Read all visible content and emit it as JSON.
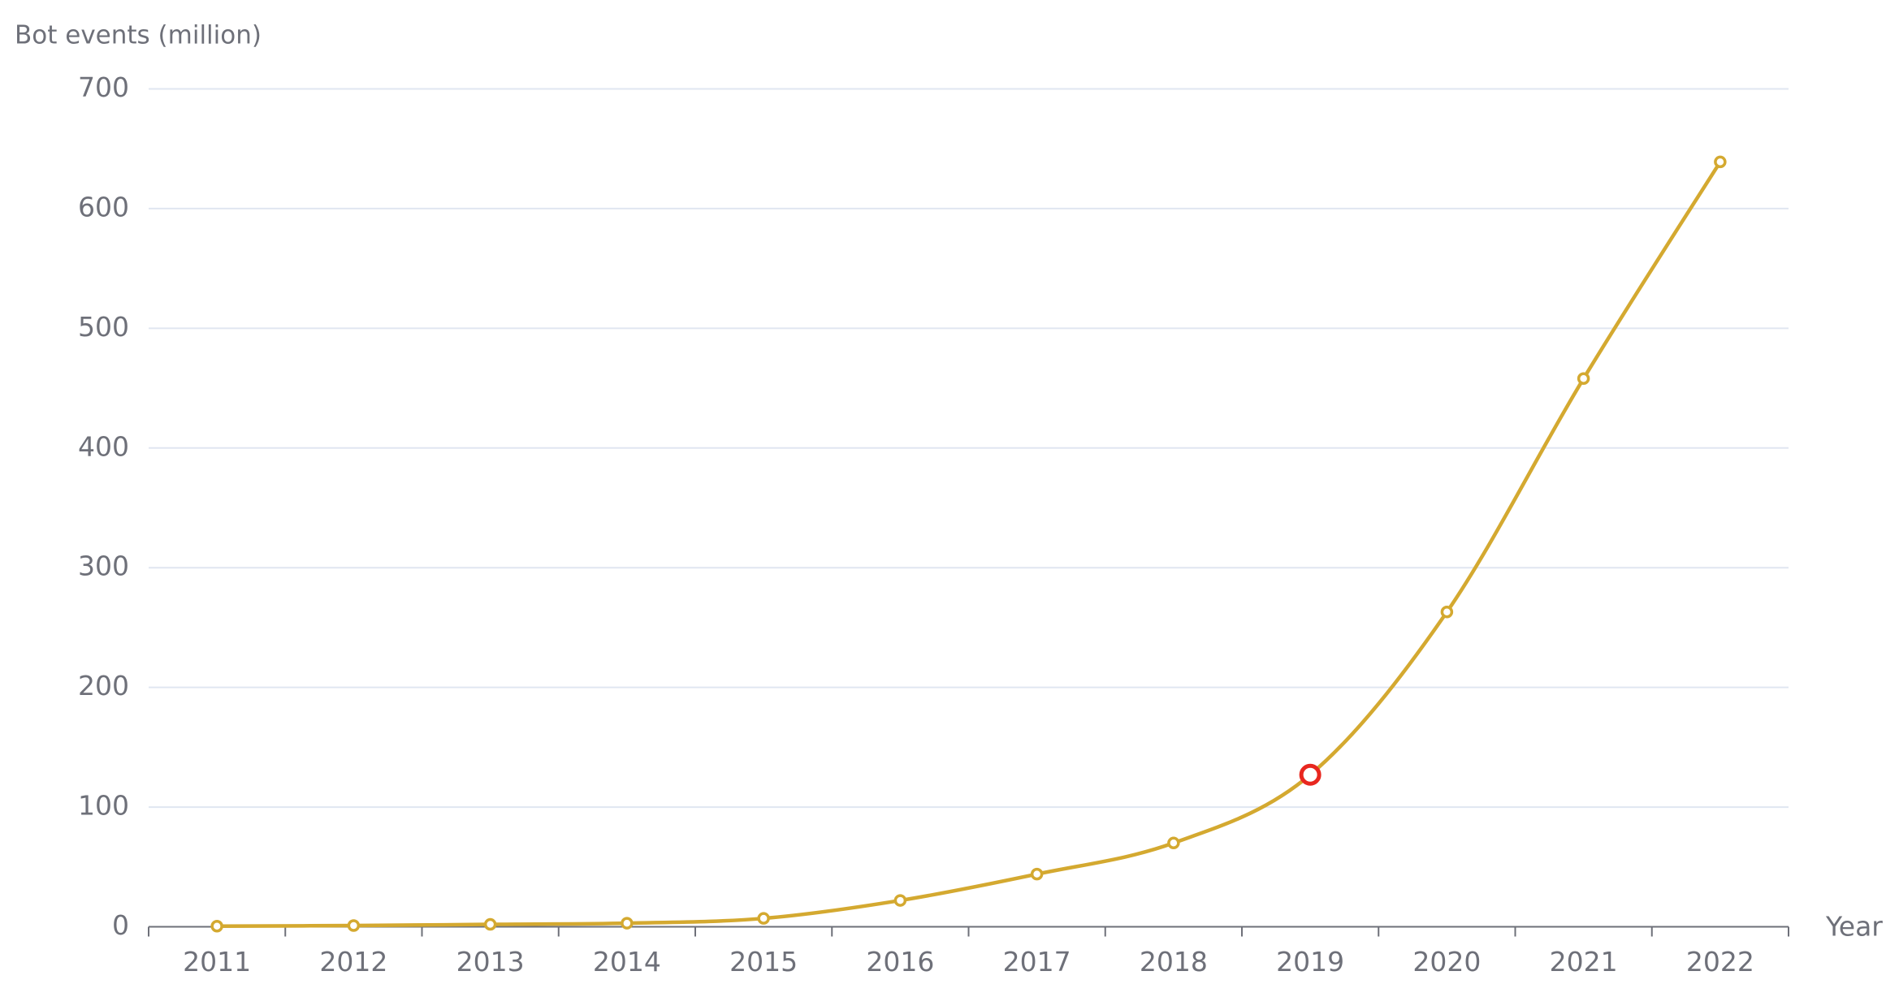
{
  "chart_data": {
    "type": "line",
    "y_axis_label": "Bot events (million)",
    "x_axis_label": "Year",
    "categories": [
      "2011",
      "2012",
      "2013",
      "2014",
      "2015",
      "2016",
      "2017",
      "2018",
      "2019",
      "2020",
      "2021",
      "2022"
    ],
    "values": [
      0.5,
      1,
      2,
      3,
      7,
      22,
      44,
      70,
      127,
      263,
      458,
      639
    ],
    "color": "#d4a930",
    "smooth": true,
    "highlight_index": 8,
    "highlight_color": "#e8271f",
    "ylim": [
      0,
      700
    ],
    "yticks": [
      0,
      100,
      200,
      300,
      400,
      500,
      600,
      700
    ],
    "grid": true
  }
}
